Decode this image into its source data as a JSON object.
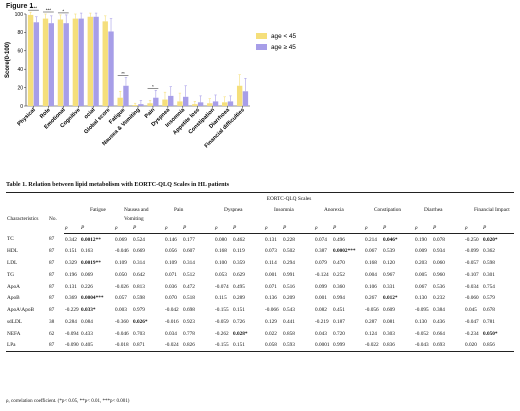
{
  "figure_title": "Figure 1",
  "chart_data": {
    "type": "bar",
    "ylabel": "Score(0-100)",
    "ylim": [
      0,
      100
    ],
    "yticks": [
      0,
      20,
      40,
      60,
      80,
      100
    ],
    "categories": [
      "Physical",
      "Role",
      "Emotional",
      "Cognitive",
      "ocial",
      "Global score",
      "Fatigue",
      "Nausea & Vomiting",
      "Pain",
      "Dyspnea",
      "Insomnia",
      "Appetite loss",
      "Constipation",
      "Diarrhoea",
      "Financial difficulties"
    ],
    "series": [
      {
        "name": "age < 45",
        "color": "#f5df7b",
        "values": [
          99,
          95,
          94,
          95,
          97,
          92,
          9,
          1,
          3,
          7,
          5,
          2,
          3,
          4,
          22
        ],
        "errors": [
          3,
          5,
          5,
          5,
          4,
          6,
          7,
          2,
          3,
          8,
          9,
          3,
          5,
          6,
          12
        ]
      },
      {
        "name": "age ≥ 45",
        "color": "#a79ee8",
        "values": [
          91,
          90,
          90,
          95,
          97,
          81,
          22,
          2,
          9,
          11,
          10,
          4,
          5,
          5,
          16
        ],
        "errors": [
          6,
          8,
          9,
          6,
          4,
          14,
          9,
          4,
          8,
          10,
          12,
          7,
          7,
          6,
          14
        ]
      }
    ],
    "significance": [
      {
        "category": "Physical",
        "label": "****"
      },
      {
        "category": "Role",
        "label": "***"
      },
      {
        "category": "Emotional",
        "label": "*"
      },
      {
        "category": "Fatigue",
        "label": "**"
      },
      {
        "category": "Pain",
        "label": "*"
      }
    ],
    "legend_position": "top-right",
    "grid": false
  },
  "table": {
    "title": "Table 1. Relation between lipid metabolism with EORTC-QLQ Scales in HL patients",
    "group_header": "EORTC-QLQ Scales",
    "characteristics_label": "Characteristics",
    "no_label": "No.",
    "scales": [
      "Fatigue",
      "Nausea and",
      "Pain",
      "Dyspnea",
      "Insomnia",
      "Anorexia",
      "Constipation",
      "Diarrhea",
      "Financial Impact"
    ],
    "scale_line2": "Vomiting",
    "rho_label": "ρ",
    "p_label": "P",
    "rows": [
      {
        "name": "TC",
        "n": "87",
        "cells": [
          "0.342",
          "0.0012**",
          "0.069",
          "0.524",
          "0.146",
          "0.177",
          "0.080",
          "0.462",
          "0.131",
          "0.228",
          "0.074",
          "0.496",
          "0.214",
          "0.046*",
          "0.190",
          "0.078",
          "-0.250",
          "0.020*"
        ]
      },
      {
        "name": "HDL",
        "n": "87",
        "cells": [
          "0.151",
          "0.163",
          "-0.046",
          "0.669",
          "0.056",
          "0.607",
          "0.168",
          "0.119",
          "0.073",
          "0.502",
          "0.387",
          "0.0002***",
          "0.067",
          "0.539",
          "0.009",
          "0.934",
          "-0.099",
          "0.362"
        ]
      },
      {
        "name": "LDL",
        "n": "87",
        "cells": [
          "0.329",
          "0.0019**",
          "0.109",
          "0.314",
          "0.109",
          "0.314",
          "0.100",
          "0.359",
          "0.114",
          "0.294",
          "0.079",
          "0.470",
          "0.168",
          "0.120",
          "0.203",
          "0.060",
          "-0.057",
          "0.598"
        ]
      },
      {
        "name": "TG",
        "n": "87",
        "cells": [
          "0.196",
          "0.069",
          "0.050",
          "0.642",
          "0.071",
          "0.512",
          "0.053",
          "0.629",
          "0.001",
          "0.991",
          "-0.124",
          "0.252",
          "0.004",
          "0.967",
          "0.005",
          "0.960",
          "-0.107",
          "0.301"
        ]
      },
      {
        "name": "ApoA",
        "n": "87",
        "cells": [
          "0.131",
          "0.226",
          "-0.026",
          "0.813",
          "0.036",
          "0.472",
          "-0.074",
          "0.495",
          "0.071",
          "0.516",
          "0.099",
          "0.360",
          "0.106",
          "0.331",
          "0.067",
          "0.536",
          "-0.034",
          "0.754"
        ]
      },
      {
        "name": "ApoB",
        "n": "87",
        "cells": [
          "0.369",
          "0.0004***",
          "0.057",
          "0.598",
          "0.070",
          "0.518",
          "0.115",
          "0.289",
          "0.136",
          "0.209",
          "0.001",
          "0.994",
          "0.267",
          "0.012*",
          "0.130",
          "0.232",
          "-0.060",
          "0.579"
        ]
      },
      {
        "name": "ApoA\\ApoB",
        "n": "87",
        "cells": [
          "-0.229",
          "0.033*",
          "0.003",
          "0.979",
          "-0.042",
          "0.698",
          "-0.155",
          "0.151",
          "-0.066",
          "0.543",
          "0.082",
          "0.451",
          "-0.056",
          "0.609",
          "-0.095",
          "0.384",
          "0.045",
          "0.678"
        ]
      },
      {
        "name": "sdLDL",
        "n": "38",
        "cells": [
          "0.284",
          "0.084",
          "-0.360",
          "0.026*",
          "-0.016",
          "0.923",
          "-0.059",
          "0.726",
          "0.129",
          "0.441",
          "-0.219",
          "0.187",
          "0.287",
          "0.081",
          "0.130",
          "0.436",
          "-0.047",
          "0.781"
        ]
      },
      {
        "name": "NEFA",
        "n": "62",
        "cells": [
          "-0.094",
          "0.433",
          "-0.046",
          "0.703",
          "0.034",
          "0.778",
          "-0.262",
          "0.028*",
          "0.022",
          "0.858",
          "0.043",
          "0.720",
          "0.124",
          "0.303",
          "-0.052",
          "0.664",
          "-0.234",
          "0.050*"
        ]
      },
      {
        "name": "LPa",
        "n": "87",
        "cells": [
          "-0.090",
          "0.405",
          "-0.018",
          "0.871",
          "-0.024",
          "0.826",
          "-0.155",
          "0.151",
          "0.058",
          "0.593",
          "0.0001",
          "0.999",
          "-0.022",
          "0.836",
          "-0.043",
          "0.693",
          "0.020",
          "0.856"
        ]
      }
    ],
    "bold_cells": [
      [
        0,
        1
      ],
      [
        0,
        13
      ],
      [
        0,
        17
      ],
      [
        1,
        11
      ],
      [
        2,
        1
      ],
      [
        5,
        1
      ],
      [
        5,
        13
      ],
      [
        6,
        1
      ],
      [
        7,
        3
      ],
      [
        8,
        7
      ],
      [
        8,
        17
      ]
    ]
  },
  "footnote": "ρ, correlation coefficient. (*p< 0.05, **p< 0.01, ***p< 0.001)"
}
